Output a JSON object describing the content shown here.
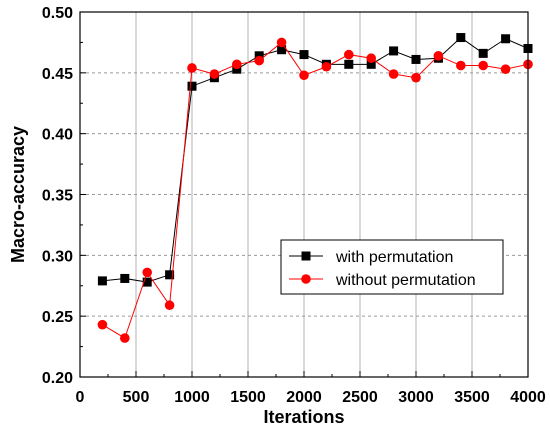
{
  "chart_data": {
    "type": "line",
    "xlabel": "Iterations",
    "ylabel": "Macro-accuracy",
    "xlim": [
      0,
      4000
    ],
    "ylim": [
      0.2,
      0.5
    ],
    "x_ticks": [
      "0",
      "500",
      "1000",
      "1500",
      "2000",
      "2500",
      "3000",
      "3500",
      "4000"
    ],
    "y_ticks": [
      "0.20",
      "0.25",
      "0.30",
      "0.35",
      "0.40",
      "0.45",
      "0.50"
    ],
    "grid": {
      "x": "solid-vertical",
      "y": "dashed-horizontal"
    },
    "legend_position": "right-middle",
    "x": [
      200,
      400,
      600,
      800,
      1000,
      1200,
      1400,
      1600,
      1800,
      2000,
      2200,
      2400,
      2600,
      2800,
      3000,
      3200,
      3400,
      3600,
      3800,
      4000
    ],
    "series": [
      {
        "name": "with permutation",
        "color": "#000000",
        "marker": "square",
        "values": [
          0.279,
          0.281,
          0.278,
          0.284,
          0.439,
          0.446,
          0.453,
          0.464,
          0.469,
          0.465,
          0.457,
          0.457,
          0.457,
          0.468,
          0.461,
          0.462,
          0.479,
          0.466,
          0.478,
          0.47
        ]
      },
      {
        "name": "without permutation",
        "color": "#ff0000",
        "marker": "circle",
        "values": [
          0.243,
          0.232,
          0.286,
          0.259,
          0.454,
          0.449,
          0.457,
          0.46,
          0.475,
          0.448,
          0.455,
          0.465,
          0.462,
          0.449,
          0.446,
          0.464,
          0.456,
          0.456,
          0.453,
          0.457
        ]
      }
    ]
  }
}
